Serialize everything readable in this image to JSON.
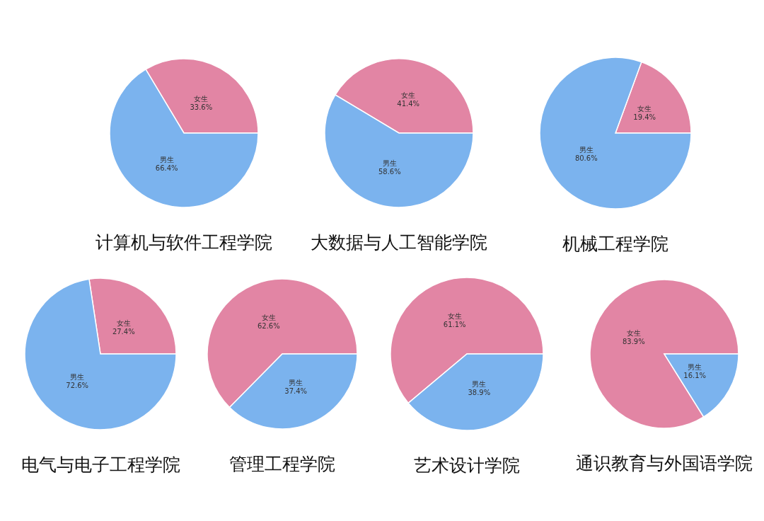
{
  "chart_data": [
    {
      "type": "pie",
      "title": "计算机与软件工程学院",
      "categories": [
        "女生",
        "男生"
      ],
      "values": [
        33.6,
        66.4
      ],
      "colors": [
        "#e285a4",
        "#7bb3ee"
      ],
      "value_labels": [
        "33.6%",
        "66.4%"
      ]
    },
    {
      "type": "pie",
      "title": "大数据与人工智能学院",
      "categories": [
        "女生",
        "男生"
      ],
      "values": [
        41.4,
        58.6
      ],
      "colors": [
        "#e285a4",
        "#7bb3ee"
      ],
      "value_labels": [
        "41.4%",
        "58.6%"
      ]
    },
    {
      "type": "pie",
      "title": "机械工程学院",
      "categories": [
        "女生",
        "男生"
      ],
      "values": [
        19.4,
        80.6
      ],
      "colors": [
        "#e285a4",
        "#7bb3ee"
      ],
      "value_labels": [
        "19.4%",
        "80.6%"
      ]
    },
    {
      "type": "pie",
      "title": "电气与电子工程学院",
      "categories": [
        "女生",
        "男生"
      ],
      "values": [
        27.4,
        72.6
      ],
      "colors": [
        "#e285a4",
        "#7bb3ee"
      ],
      "value_labels": [
        "27.4%",
        "72.6%"
      ]
    },
    {
      "type": "pie",
      "title": "管理工程学院",
      "categories": [
        "女生",
        "男生"
      ],
      "values": [
        62.6,
        37.4
      ],
      "colors": [
        "#e285a4",
        "#7bb3ee"
      ],
      "value_labels": [
        "62.6%",
        "37.4%"
      ]
    },
    {
      "type": "pie",
      "title": "艺术设计学院",
      "categories": [
        "女生",
        "男生"
      ],
      "values": [
        61.1,
        38.9
      ],
      "colors": [
        "#e285a4",
        "#7bb3ee"
      ],
      "value_labels": [
        "61.1%",
        "38.9%"
      ]
    },
    {
      "type": "pie",
      "title": "通识教育与外国语学院",
      "categories": [
        "女生",
        "男生"
      ],
      "values": [
        83.9,
        16.1
      ],
      "colors": [
        "#e285a4",
        "#7bb3ee"
      ],
      "value_labels": [
        "83.9%",
        "16.1%"
      ]
    }
  ]
}
